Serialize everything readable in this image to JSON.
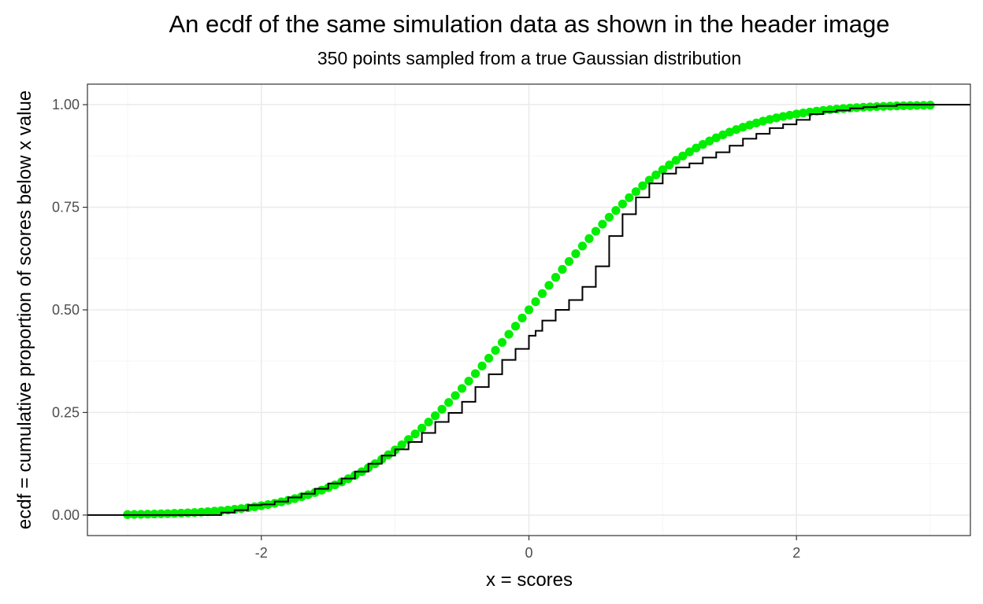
{
  "chart_data": {
    "type": "line",
    "title": "An ecdf of the same simulation data as shown in the header image",
    "subtitle": "350 points sampled from a true Gaussian distribution",
    "xlabel": "x = scores",
    "ylabel": "ecdf = cumulative proportion of scores below x value",
    "xlim": [
      -3.3,
      3.3
    ],
    "ylim": [
      -0.05,
      1.05
    ],
    "x_ticks": [
      {
        "value": -2,
        "label": "-2"
      },
      {
        "value": 0,
        "label": "0"
      },
      {
        "value": 2,
        "label": "2"
      }
    ],
    "y_ticks": [
      {
        "value": 0,
        "label": "0.00"
      },
      {
        "value": 0.25,
        "label": "0.25"
      },
      {
        "value": 0.5,
        "label": "0.50"
      },
      {
        "value": 0.75,
        "label": "0.75"
      },
      {
        "value": 1,
        "label": "1.00"
      }
    ],
    "grid": true,
    "colors": {
      "theoretical": "#00ee00",
      "empirical": "#000000",
      "grid_major": "#ebebeb",
      "grid_minor": "#f5f5f5",
      "panel_border": "#333333"
    },
    "series": [
      {
        "type": "scatter",
        "x_range": [
          -3,
          3
        ],
        "n_points": 121,
        "values": [
          0.0013,
          0.0016,
          0.0019,
          0.0022,
          0.0026,
          0.003,
          0.0035,
          0.0041,
          0.0047,
          0.0055,
          0.0062,
          0.0072,
          0.0082,
          0.0094,
          0.0107,
          0.0122,
          0.0139,
          0.0158,
          0.0179,
          0.0202,
          0.0228,
          0.0256,
          0.0287,
          0.0322,
          0.0359,
          0.0401,
          0.0446,
          0.0495,
          0.0548,
          0.0606,
          0.0668,
          0.0735,
          0.0808,
          0.0885,
          0.0968,
          0.1056,
          0.1151,
          0.1251,
          0.1357,
          0.1469,
          0.1587,
          0.1711,
          0.1841,
          0.1977,
          0.2119,
          0.2266,
          0.242,
          0.2578,
          0.2743,
          0.2912,
          0.3085,
          0.3264,
          0.3446,
          0.3632,
          0.3821,
          0.4013,
          0.4207,
          0.4404,
          0.4602,
          0.4801,
          0.5,
          0.5199,
          0.5398,
          0.5596,
          0.5793,
          0.5987,
          0.6179,
          0.6368,
          0.6554,
          0.6736,
          0.6915,
          0.7088,
          0.7257,
          0.7422,
          0.758,
          0.7734,
          0.7881,
          0.8023,
          0.8159,
          0.8289,
          0.8413,
          0.8531,
          0.8643,
          0.8749,
          0.8849,
          0.8944,
          0.9032,
          0.9115,
          0.9192,
          0.9265,
          0.9332,
          0.9394,
          0.9452,
          0.9505,
          0.9554,
          0.9599,
          0.9641,
          0.9678,
          0.9713,
          0.9744,
          0.9772,
          0.9798,
          0.9821,
          0.9842,
          0.9861,
          0.9878,
          0.9893,
          0.9906,
          0.9918,
          0.9928,
          0.9938,
          0.9945,
          0.9953,
          0.9959,
          0.9965,
          0.997,
          0.9974,
          0.9978,
          0.9981,
          0.9984,
          0.9987
        ]
      },
      {
        "type": "step",
        "points": [
          [
            -3.3,
            0
          ],
          [
            -2.4,
            0
          ],
          [
            -2.3,
            0.006
          ],
          [
            -2.2,
            0.012
          ],
          [
            -2.1,
            0.024
          ],
          [
            -2.0,
            0.026
          ],
          [
            -1.9,
            0.033
          ],
          [
            -1.8,
            0.043
          ],
          [
            -1.7,
            0.052
          ],
          [
            -1.6,
            0.064
          ],
          [
            -1.5,
            0.077
          ],
          [
            -1.4,
            0.089
          ],
          [
            -1.3,
            0.106
          ],
          [
            -1.2,
            0.125
          ],
          [
            -1.1,
            0.145
          ],
          [
            -1.0,
            0.16
          ],
          [
            -0.9,
            0.178
          ],
          [
            -0.8,
            0.2
          ],
          [
            -0.7,
            0.227
          ],
          [
            -0.6,
            0.249
          ],
          [
            -0.5,
            0.276
          ],
          [
            -0.4,
            0.312
          ],
          [
            -0.3,
            0.343
          ],
          [
            -0.2,
            0.378
          ],
          [
            -0.1,
            0.405
          ],
          [
            0.0,
            0.437
          ],
          [
            0.05,
            0.449
          ],
          [
            0.1,
            0.474
          ],
          [
            0.2,
            0.5
          ],
          [
            0.3,
            0.524
          ],
          [
            0.4,
            0.556
          ],
          [
            0.5,
            0.606
          ],
          [
            0.6,
            0.68
          ],
          [
            0.7,
            0.733
          ],
          [
            0.8,
            0.774
          ],
          [
            0.9,
            0.808
          ],
          [
            1.0,
            0.832
          ],
          [
            1.1,
            0.847
          ],
          [
            1.2,
            0.857
          ],
          [
            1.3,
            0.871
          ],
          [
            1.4,
            0.884
          ],
          [
            1.5,
            0.9
          ],
          [
            1.6,
            0.917
          ],
          [
            1.7,
            0.929
          ],
          [
            1.8,
            0.943
          ],
          [
            1.9,
            0.952
          ],
          [
            2.0,
            0.963
          ],
          [
            2.1,
            0.977
          ],
          [
            2.2,
            0.983
          ],
          [
            2.3,
            0.986
          ],
          [
            2.4,
            0.991
          ],
          [
            2.5,
            0.994
          ],
          [
            2.6,
            0.997
          ],
          [
            2.75,
            1.0
          ],
          [
            3.3,
            1.0
          ]
        ]
      }
    ]
  }
}
